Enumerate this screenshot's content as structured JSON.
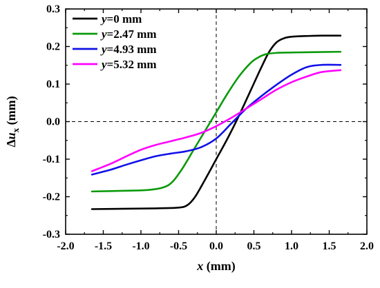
{
  "chart_data": {
    "type": "line",
    "xlabel": "x (mm)",
    "xlabel_parts": {
      "var": "x",
      "unit": " (mm)"
    },
    "ylabel": "Δux (mm)",
    "ylabel_parts": {
      "delta": "Δ",
      "var": "u",
      "sub": "x",
      "unit": " (mm)"
    },
    "xlim": [
      -2.0,
      2.0
    ],
    "ylim": [
      -0.3,
      0.3
    ],
    "xticks": [
      -2.0,
      -1.5,
      -1.0,
      -0.5,
      0.0,
      0.5,
      1.0,
      1.5,
      2.0
    ],
    "yticks": [
      -0.3,
      -0.2,
      -0.1,
      0.0,
      0.1,
      0.2,
      0.3
    ],
    "xtick_labels": [
      "-2.0",
      "-1.5",
      "-1.0",
      "-0.5",
      "0.0",
      "0.5",
      "1.0",
      "1.5",
      "2.0"
    ],
    "ytick_labels": [
      "-0.3",
      "-0.2",
      "-0.1",
      "0.0",
      "0.1",
      "0.2",
      "0.3"
    ],
    "grid": false,
    "reference_lines": {
      "x": 0,
      "y": 0,
      "style": "dashed"
    },
    "legend_position": "top-left",
    "series": [
      {
        "name": "y=0 mm",
        "label_var": "y",
        "label_rest": "=0 mm",
        "color": "#000000",
        "x": [
          -1.65,
          -1.2,
          -0.8,
          -0.5,
          -0.38,
          -0.28,
          -0.15,
          0.0,
          0.15,
          0.3,
          0.45,
          0.6,
          0.7,
          0.8,
          0.9,
          1.0,
          1.2,
          1.4,
          1.65
        ],
        "y": [
          -0.233,
          -0.232,
          -0.231,
          -0.229,
          -0.222,
          -0.2,
          -0.155,
          -0.1,
          -0.045,
          0.015,
          0.08,
          0.145,
          0.185,
          0.211,
          0.222,
          0.226,
          0.228,
          0.229,
          0.229
        ]
      },
      {
        "name": "y=2.47 mm",
        "label_var": "y",
        "label_rest": "=2.47 mm",
        "color": "#0a9a0a",
        "x": [
          -1.65,
          -1.2,
          -0.9,
          -0.7,
          -0.58,
          -0.45,
          -0.3,
          -0.15,
          0.0,
          0.15,
          0.3,
          0.45,
          0.55,
          0.65,
          0.8,
          1.0,
          1.3,
          1.65
        ],
        "y": [
          -0.186,
          -0.184,
          -0.182,
          -0.175,
          -0.16,
          -0.125,
          -0.075,
          -0.025,
          0.025,
          0.075,
          0.12,
          0.155,
          0.17,
          0.179,
          0.183,
          0.184,
          0.185,
          0.186
        ]
      },
      {
        "name": "y=4.93 mm",
        "label_var": "y",
        "label_rest": "=4.93 mm",
        "color": "#1010e8",
        "x": [
          -1.65,
          -1.4,
          -1.2,
          -1.0,
          -0.8,
          -0.6,
          -0.4,
          -0.2,
          0.0,
          0.2,
          0.4,
          0.6,
          0.8,
          1.0,
          1.2,
          1.4,
          1.65
        ],
        "y": [
          -0.141,
          -0.128,
          -0.115,
          -0.103,
          -0.092,
          -0.085,
          -0.079,
          -0.068,
          -0.045,
          -0.005,
          0.035,
          0.068,
          0.098,
          0.125,
          0.145,
          0.151,
          0.151
        ]
      },
      {
        "name": "y=5.32 mm",
        "label_var": "y",
        "label_rest": "=5.32 mm",
        "color": "#ff00ff",
        "x": [
          -1.65,
          -1.4,
          -1.2,
          -1.0,
          -0.8,
          -0.6,
          -0.4,
          -0.2,
          0.0,
          0.2,
          0.4,
          0.6,
          0.8,
          1.0,
          1.2,
          1.4,
          1.65
        ],
        "y": [
          -0.132,
          -0.112,
          -0.093,
          -0.075,
          -0.062,
          -0.052,
          -0.042,
          -0.03,
          -0.012,
          0.01,
          0.035,
          0.06,
          0.085,
          0.105,
          0.12,
          0.132,
          0.137
        ]
      }
    ]
  }
}
